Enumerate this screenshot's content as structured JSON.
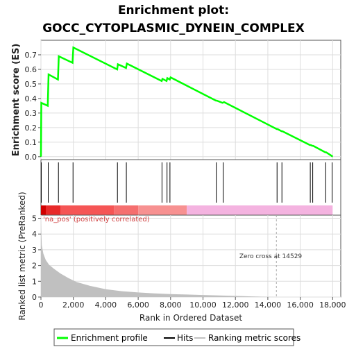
{
  "title_line1": "Enrichment plot:",
  "title_line2": "GOCC_CYTOPLASMIC_DYNEIN_COMPLEX",
  "colors": {
    "enrichment": "#00ff00",
    "hits": "#000000",
    "ranking": "#c0c0c0",
    "positive_label": "#d04040",
    "zero_line": "#aaaaaa"
  },
  "chart_data": {
    "type": "line",
    "enrichment": {
      "ylabel": "Enrichment score (ES)",
      "xlim": [
        0,
        18500
      ],
      "ylim": [
        -0.02,
        0.8
      ],
      "yticks": [
        0.0,
        0.1,
        0.2,
        0.3,
        0.4,
        0.5,
        0.6,
        0.7
      ],
      "ytick_labels": [
        "0.0",
        "0.1",
        "0.2",
        "0.3",
        "0.4",
        "0.5",
        "0.6",
        "0.7"
      ],
      "series": [
        {
          "name": "Enrichment profile",
          "x": [
            0,
            20,
            420,
            470,
            1050,
            1100,
            1950,
            2000,
            4700,
            4750,
            5250,
            5300,
            7450,
            7500,
            7750,
            7800,
            7950,
            8000,
            10800,
            10850,
            11200,
            11300,
            14550,
            14600,
            14850,
            14900,
            16600,
            16650,
            16750,
            16800,
            17550,
            17600,
            17950,
            18000
          ],
          "y": [
            0.0,
            0.37,
            0.35,
            0.565,
            0.53,
            0.69,
            0.645,
            0.75,
            0.6,
            0.635,
            0.61,
            0.64,
            0.52,
            0.535,
            0.52,
            0.54,
            0.53,
            0.545,
            0.385,
            0.385,
            0.37,
            0.375,
            0.19,
            0.19,
            0.175,
            0.175,
            0.08,
            0.08,
            0.075,
            0.075,
            0.03,
            0.03,
            0.005,
            0.0
          ]
        }
      ]
    },
    "hits": {
      "name": "Hits",
      "x": [
        20,
        450,
        1080,
        1980,
        4720,
        5270,
        7470,
        7780,
        7960,
        10820,
        11250,
        14570,
        14870,
        16620,
        16770,
        17570,
        17970
      ]
    },
    "heatmap_bar": {
      "segments": [
        {
          "start": 0,
          "end": 300,
          "color": "#d10000"
        },
        {
          "start": 300,
          "end": 1200,
          "color": "#e82a2a"
        },
        {
          "start": 1200,
          "end": 4500,
          "color": "#f55555"
        },
        {
          "start": 4500,
          "end": 6000,
          "color": "#f56f6f"
        },
        {
          "start": 6000,
          "end": 9000,
          "color": "#f79191"
        },
        {
          "start": 9000,
          "end": 18000,
          "color": "#f4b3e0"
        }
      ]
    },
    "ranking": {
      "name": "Ranking metric scores",
      "ylabel": "Ranked list metric (PreRanked)",
      "xlabel": "Rank in Ordered Dataset",
      "xlim": [
        0,
        18500
      ],
      "ylim": [
        0,
        5.2
      ],
      "xticks": [
        0,
        2000,
        4000,
        6000,
        8000,
        10000,
        12000,
        14000,
        16000,
        18000
      ],
      "xtick_labels": [
        "0",
        "2,000",
        "4,000",
        "6,000",
        "8,000",
        "10,000",
        "12,000",
        "14,000",
        "16,000",
        "18,000"
      ],
      "yticks": [
        0,
        1,
        2,
        3,
        4,
        5
      ],
      "ytick_labels": [
        "0",
        "1",
        "2",
        "3",
        "4",
        "5"
      ],
      "x": [
        0,
        50,
        150,
        300,
        500,
        800,
        1200,
        1700,
        2200,
        3000,
        4000,
        5000,
        6000,
        7000,
        8000,
        9000,
        10000,
        11000,
        12000,
        13000,
        14000,
        14529,
        15000,
        16000,
        17000,
        18000
      ],
      "y": [
        4.9,
        3.3,
        2.75,
        2.35,
        2.05,
        1.8,
        1.5,
        1.2,
        0.95,
        0.72,
        0.5,
        0.37,
        0.29,
        0.23,
        0.19,
        0.16,
        0.13,
        0.1,
        0.07,
        0.04,
        0.015,
        0.0,
        0.0,
        0.0,
        0.0,
        0.0
      ],
      "zero_cross": 14529,
      "zero_cross_label": "Zero cross at 14529",
      "positive_label": "'na_pos' (positively correlated)"
    }
  },
  "legend": {
    "items": [
      {
        "label": "Enrichment profile",
        "color": "#00ff00",
        "kind": "line"
      },
      {
        "label": "Hits",
        "color": "#000000",
        "kind": "line"
      },
      {
        "label": "Ranking metric scores",
        "color": "#c0c0c0",
        "kind": "line"
      }
    ]
  }
}
